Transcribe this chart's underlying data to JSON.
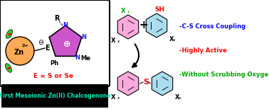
{
  "title": "First Mesoionic Zn(II) Chalcogenone",
  "title_color": "#00eebb",
  "title_bg": "#000000",
  "bullet1": "-C-S Cross Coupling",
  "bullet1_color": "#0000ff",
  "bullet2": "-Highly Active",
  "bullet2_color": "#ff0000",
  "bullet3": "-Without Scrubbing Oxygen",
  "bullet3_color": "#00aa00",
  "bg_color": "#ffffff",
  "zn_color": "#ffaa55",
  "ring_color": "#cc55cc",
  "lobe_color": "#33cc33",
  "sh_color": "#ff0000",
  "x1_color": "#00aa00",
  "s_color": "#ff0000",
  "n_color": "#2222ff",
  "benzene_pink_fill": "#ffaadd",
  "benzene_cyan_fill": "#aaddee",
  "figw": 3.78,
  "figh": 1.54,
  "dpi": 100
}
